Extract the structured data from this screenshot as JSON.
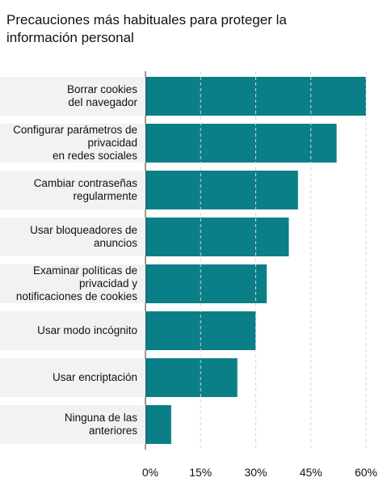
{
  "chart_data": {
    "type": "barh",
    "title": "Precauciones más habituales para proteger la información personal",
    "categories": [
      "Borrar cookies\ndel navegador",
      "Configurar parámetros de\nprivacidad\nen redes sociales",
      "Cambiar contraseñas\nregularmente",
      "Usar bloqueadores de\nanuncios",
      "Examinar políticas de\nprivacidad y\nnotificaciones de cookies",
      "Usar modo incógnito",
      "Usar encriptación",
      "Ninguna de las\nanteriores"
    ],
    "values": [
      60,
      52,
      41.5,
      39,
      33,
      30,
      25,
      7
    ],
    "color": "#0a7f88",
    "xlim": [
      0,
      60
    ],
    "xticks": [
      {
        "value": 0,
        "label": "0%"
      },
      {
        "value": 15,
        "label": "15%"
      },
      {
        "value": 30,
        "label": "30%"
      },
      {
        "value": 45,
        "label": "45%"
      },
      {
        "value": 60,
        "label": "60%"
      }
    ],
    "grid": true
  }
}
